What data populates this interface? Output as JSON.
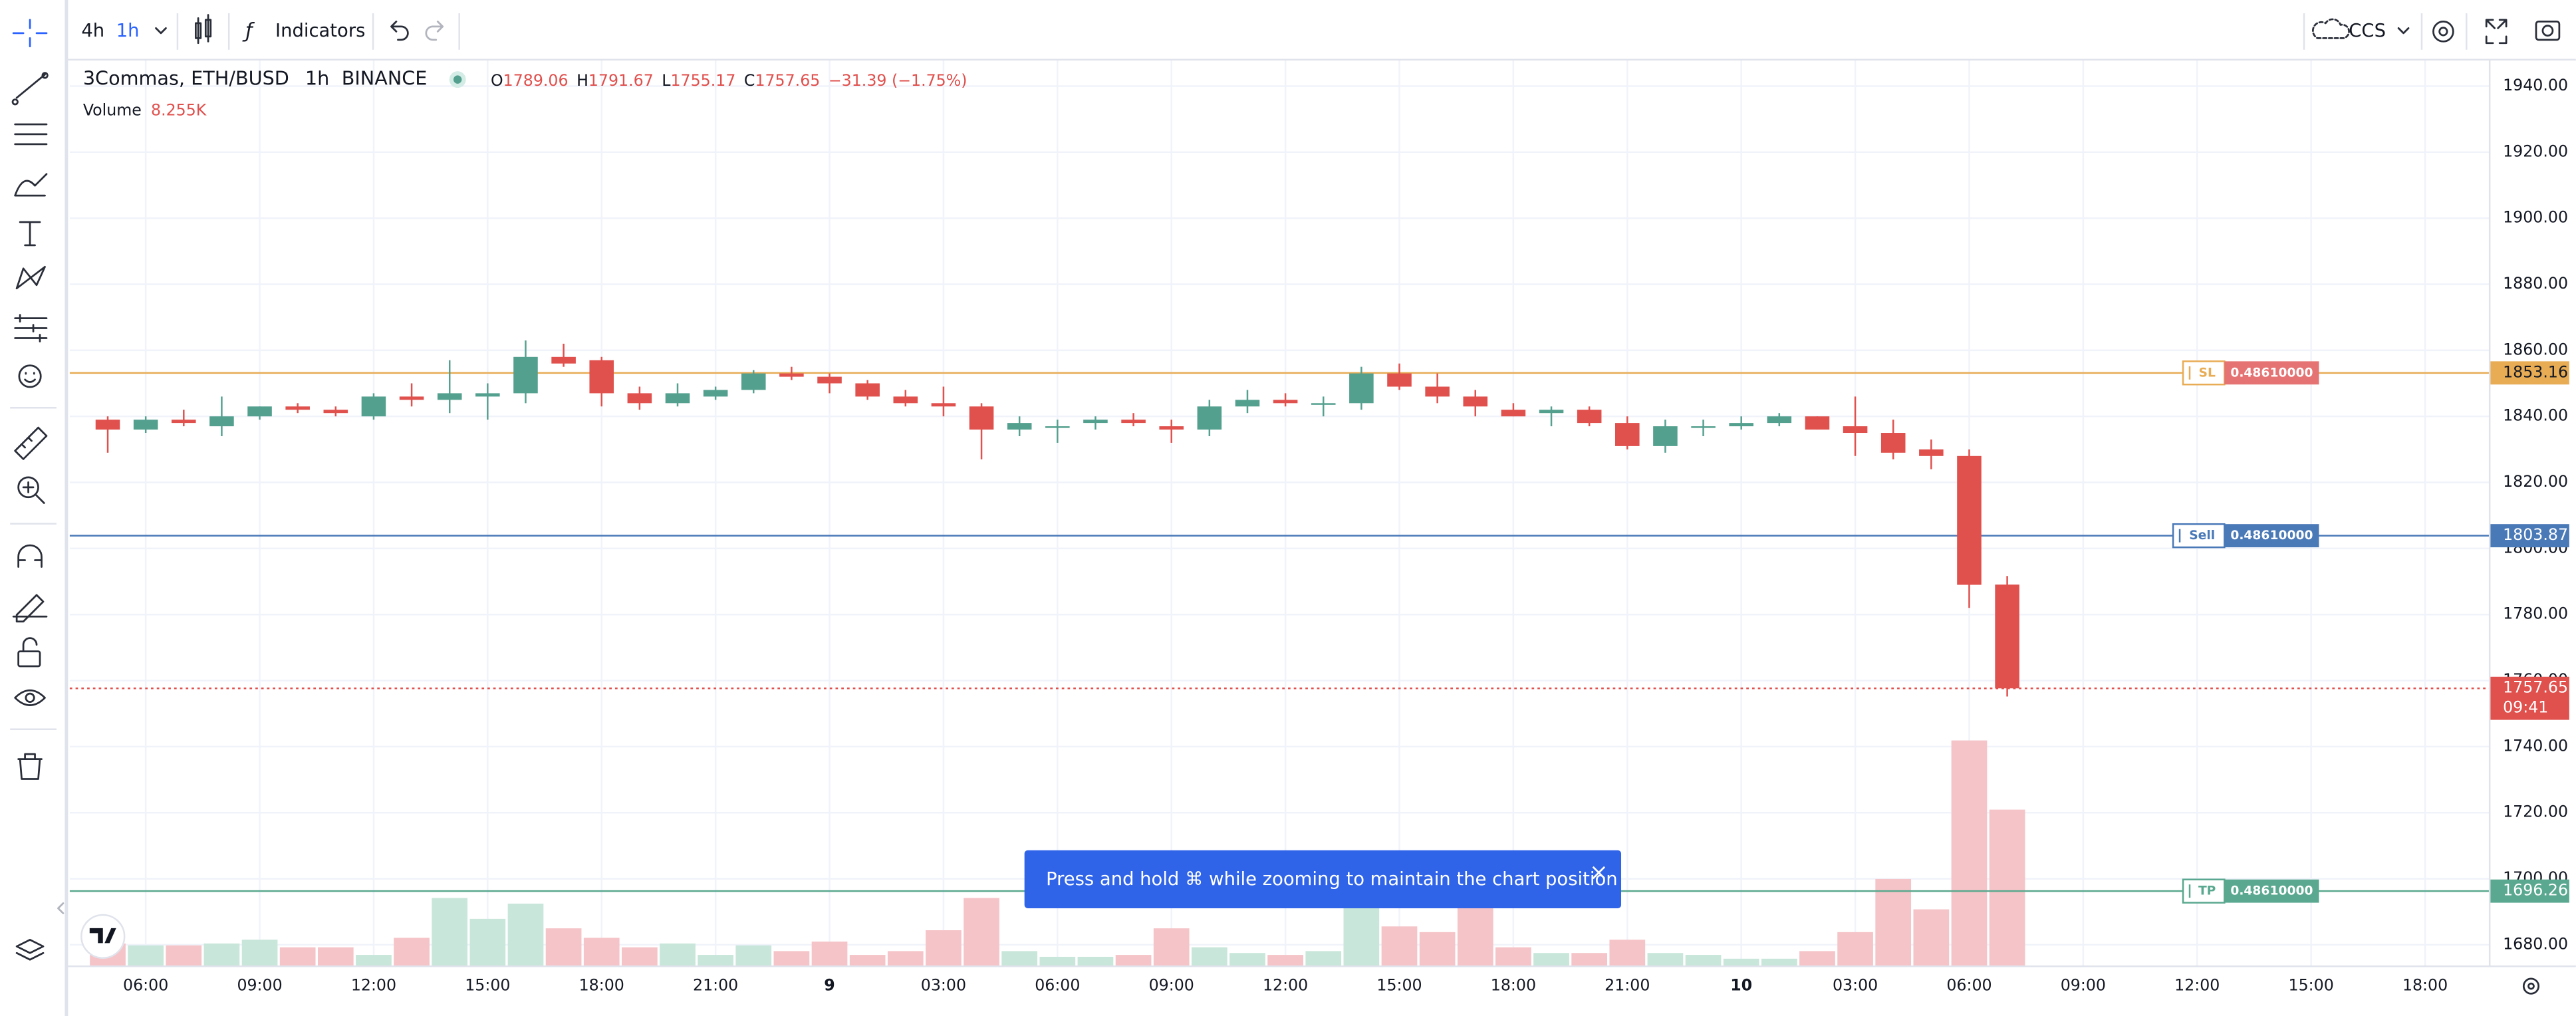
{
  "toolbar": {
    "intervals": [
      "4h",
      "1h"
    ],
    "indicators": "Indicators",
    "symbol_search": "CCS"
  },
  "legend": {
    "title": "3Commas, ETH/BUSD",
    "interval": "1h",
    "exchange": "BINANCE",
    "ohlc_labels": [
      "O",
      "H",
      "L",
      "C"
    ],
    "change": "−31.39 (−1.75%)",
    "volume_label": "Volume",
    "volume_value": "8.255K"
  },
  "toast": {
    "text": "Press and hold ⌘ while zooming to maintain the chart position"
  },
  "chart_data": {
    "type": "candlestick",
    "x": [
      5,
      6,
      7,
      8,
      9,
      10,
      11,
      12,
      13,
      14,
      15,
      16,
      17,
      18,
      19,
      20,
      21,
      22,
      23,
      24,
      25,
      26,
      27,
      28,
      29,
      30,
      31,
      32,
      33,
      34,
      35,
      36,
      37,
      38,
      39,
      40,
      41,
      42,
      43,
      44,
      45,
      46,
      47,
      48,
      49,
      50,
      51,
      52,
      53,
      54,
      55
    ],
    "open": [
      1839,
      1836,
      1839,
      1837,
      1840,
      1843,
      1842,
      1840,
      1846,
      1845,
      1846,
      1847,
      1858,
      1857,
      1847,
      1844,
      1846,
      1848,
      1853,
      1852,
      1850,
      1846,
      1844,
      1843,
      1836,
      1837,
      1838,
      1839,
      1837,
      1836,
      1843,
      1845,
      1844,
      1844,
      1853,
      1849,
      1846,
      1842,
      1841,
      1842,
      1838,
      1831,
      1837,
      1837,
      1838,
      1840,
      1837,
      1835,
      1830,
      1828,
      1789.06
    ],
    "high": [
      1840,
      1840,
      1842,
      1846,
      1843,
      1844,
      1843,
      1847,
      1850,
      1857,
      1850,
      1863,
      1862,
      1858,
      1849,
      1850,
      1849,
      1854,
      1855,
      1853,
      1851,
      1848,
      1849,
      1844,
      1840,
      1839,
      1840,
      1841,
      1839,
      1845,
      1848,
      1847,
      1846,
      1855,
      1856,
      1853,
      1848,
      1844,
      1843,
      1843,
      1840,
      1839,
      1839,
      1840,
      1841,
      1840,
      1846,
      1839,
      1833,
      1830,
      1791.67
    ],
    "low": [
      1829,
      1835,
      1837,
      1834,
      1839,
      1841,
      1840,
      1839,
      1843,
      1841,
      1839,
      1844,
      1855,
      1843,
      1842,
      1843,
      1845,
      1847,
      1851,
      1847,
      1845,
      1843,
      1840,
      1827,
      1834,
      1832,
      1836,
      1837,
      1832,
      1834,
      1841,
      1843,
      1840,
      1842,
      1848,
      1844,
      1840,
      1840,
      1837,
      1837,
      1830,
      1829,
      1834,
      1836,
      1837,
      1836,
      1828,
      1827,
      1824,
      1782,
      1755.17
    ],
    "close": [
      1836,
      1839,
      1838,
      1840,
      1843,
      1842,
      1841,
      1846,
      1845,
      1847,
      1847,
      1858,
      1856,
      1847,
      1844,
      1847,
      1848,
      1853,
      1852,
      1850,
      1846,
      1844,
      1843,
      1836,
      1838,
      1837,
      1839,
      1838,
      1836,
      1843,
      1845,
      1844,
      1844,
      1853,
      1849,
      1846,
      1843,
      1840,
      1842,
      1838,
      1831,
      1837,
      1837,
      1838,
      1840,
      1836,
      1835,
      1829,
      1828,
      1789,
      1757.65
    ],
    "volume": [
      1.2,
      1.1,
      1.1,
      1.2,
      1.4,
      1.0,
      1.0,
      0.6,
      1.5,
      3.6,
      2.5,
      3.3,
      2.0,
      1.5,
      1.0,
      1.2,
      0.6,
      1.1,
      0.8,
      1.3,
      0.6,
      0.8,
      1.9,
      3.6,
      0.8,
      0.5,
      0.5,
      0.6,
      2.0,
      1.0,
      0.7,
      0.6,
      0.8,
      3.2,
      2.1,
      1.8,
      3.1,
      1.0,
      0.7,
      0.7,
      1.4,
      0.7,
      0.6,
      0.4,
      0.4,
      0.8,
      1.8,
      4.6,
      3.0,
      11.9,
      8.255
    ],
    "volume_ylim": [
      0,
      20
    ],
    "xlim": [
      4,
      67.7
    ],
    "xticks": [
      {
        "value": 6,
        "label": "06:00"
      },
      {
        "value": 9,
        "label": "09:00"
      },
      {
        "value": 12,
        "label": "12:00"
      },
      {
        "value": 15,
        "label": "15:00"
      },
      {
        "value": 18,
        "label": "18:00"
      },
      {
        "value": 21,
        "label": "21:00"
      },
      {
        "value": 24,
        "label": "9"
      },
      {
        "value": 27,
        "label": "03:00"
      },
      {
        "value": 30,
        "label": "06:00"
      },
      {
        "value": 33,
        "label": "09:00"
      },
      {
        "value": 36,
        "label": "12:00"
      },
      {
        "value": 39,
        "label": "15:00"
      },
      {
        "value": 42,
        "label": "18:00"
      },
      {
        "value": 45,
        "label": "21:00"
      },
      {
        "value": 48,
        "label": "10"
      },
      {
        "value": 51,
        "label": "03:00"
      },
      {
        "value": 54,
        "label": "06:00"
      },
      {
        "value": 57,
        "label": "09:00"
      },
      {
        "value": 60,
        "label": "12:00"
      },
      {
        "value": 63,
        "label": "15:00"
      },
      {
        "value": 66,
        "label": "18:00"
      }
    ],
    "ylim": [
      1673.5,
      1948
    ],
    "yticks": [
      {
        "value": 1680,
        "label": "1680.00"
      },
      {
        "value": 1700,
        "label": "1700.00"
      },
      {
        "value": 1720,
        "label": "1720.00"
      },
      {
        "value": 1740,
        "label": "1740.00"
      },
      {
        "value": 1760,
        "label": "1760.00"
      },
      {
        "value": 1780,
        "label": "1780.00"
      },
      {
        "value": 1800,
        "label": "1800.00"
      },
      {
        "value": 1820,
        "label": "1820.00"
      },
      {
        "value": 1840,
        "label": "1840.00"
      },
      {
        "value": 1860,
        "label": "1860.00"
      },
      {
        "value": 1880,
        "label": "1880.00"
      },
      {
        "value": 1900,
        "label": "1900.00"
      },
      {
        "value": 1920,
        "label": "1920.00"
      },
      {
        "value": 1940,
        "label": "1940.00"
      }
    ],
    "grid": true,
    "colors": {
      "up": "#54a08f",
      "down": "#e0504d",
      "volume_up": "#c8e6da",
      "volume_down": "#f5c4c8"
    },
    "lines": [
      {
        "name": "SL",
        "value": 1853.16,
        "quantity": "0.48610000",
        "color": "#e8ac55",
        "label_color": "#e57373"
      },
      {
        "name": "Sell",
        "value": 1803.87,
        "quantity": "0.48610000",
        "color": "#4a79b8",
        "label_color": "#4a79b8"
      },
      {
        "name": "TP",
        "value": 1696.26,
        "quantity": "0.48610000",
        "color": "#5aa88f",
        "label_color": "#5aa88f"
      }
    ],
    "last_price": 1757.65,
    "countdown": "09:41"
  }
}
